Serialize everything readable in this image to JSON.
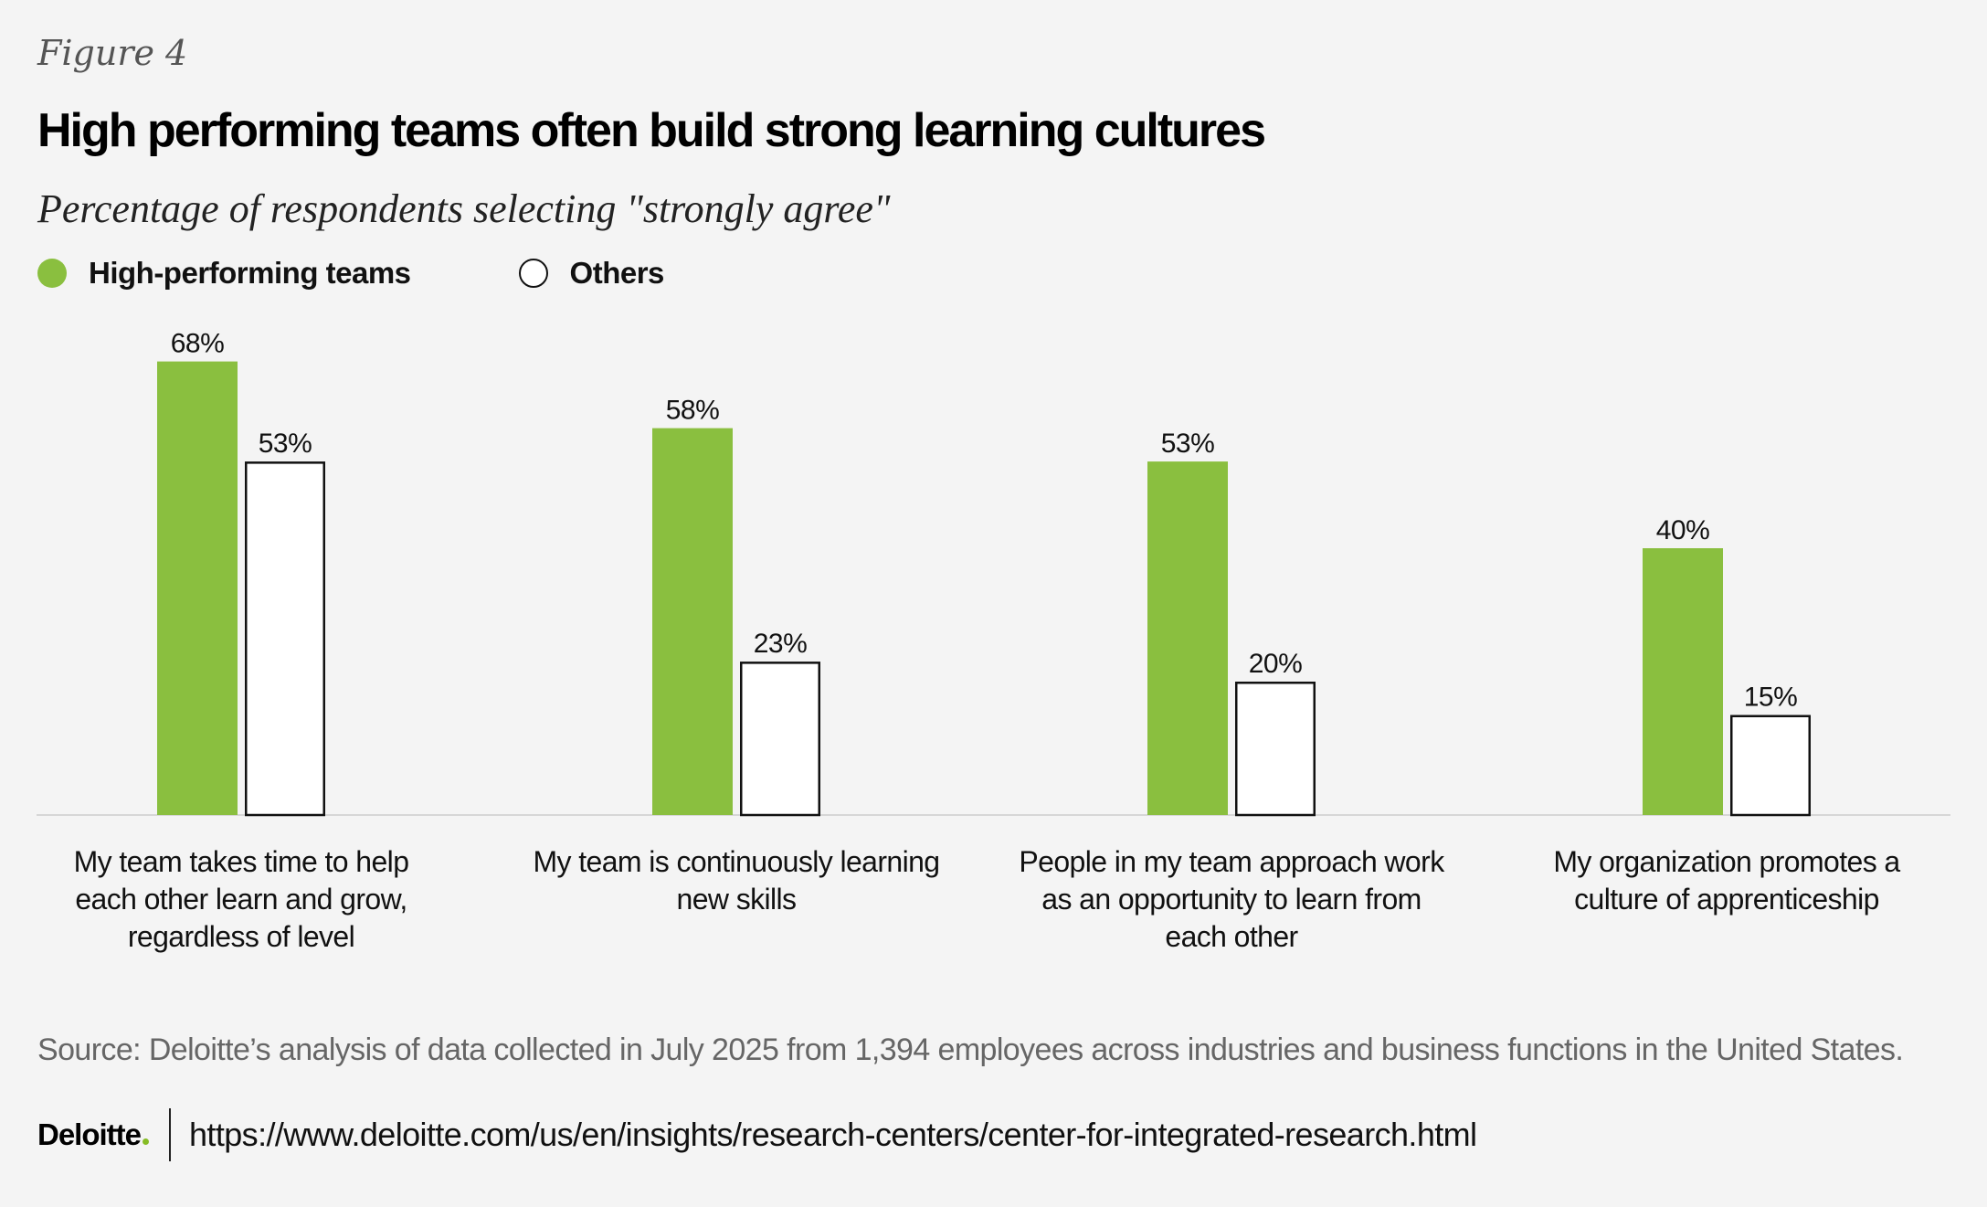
{
  "figure_label": "Figure 4",
  "colors": {
    "high_performing": "#8abf3f",
    "others_fill": "#ffffff",
    "others_stroke": "#111111",
    "baseline": "#d6d6d6",
    "deloitte_green": "#86bc25"
  },
  "footer": {
    "logo_text": "Deloitte",
    "url": "https://www.deloitte.com/us/en/insights/research-centers/center-for-integrated-research.html"
  },
  "source": "Source: Deloitte’s analysis of data collected in July 2025 from 1,394 employees across industries and business functions in the United States.",
  "chart_data": {
    "type": "bar",
    "title": "High performing teams often build strong learning cultures",
    "subtitle": "Percentage of respondents selecting \"strongly agree\"",
    "xlabel": "",
    "ylabel": "",
    "ylim": [
      0,
      100
    ],
    "grid": false,
    "legend_position": "top-left",
    "categories": [
      [
        "My team takes time to help",
        "each other learn and grow,",
        "regardless of level"
      ],
      [
        "My team is continuously learning",
        "new skills"
      ],
      [
        "People in my team approach work",
        "as an opportunity to learn from",
        "each other"
      ],
      [
        "My organization promotes a",
        "culture of apprenticeship"
      ]
    ],
    "series": [
      {
        "name": "High-performing teams",
        "values": [
          68,
          58,
          53,
          40
        ],
        "labels": [
          "68%",
          "58%",
          "53%",
          "40%"
        ]
      },
      {
        "name": "Others",
        "values": [
          53,
          23,
          20,
          15
        ],
        "labels": [
          "53%",
          "23%",
          "20%",
          "15%"
        ]
      }
    ]
  }
}
